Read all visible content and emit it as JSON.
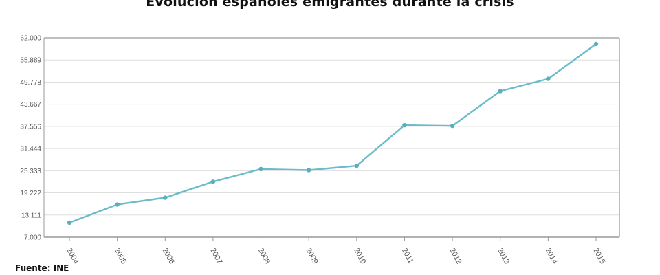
{
  "chart_data": {
    "type": "line",
    "title": "Evolución españoles emigrantes durante la crisis",
    "source": "Fuente: INE",
    "xlabel": "",
    "ylabel": "",
    "categories": [
      "2004",
      "2005",
      "2006",
      "2007",
      "2008",
      "2009",
      "2010",
      "2011",
      "2012",
      "2013",
      "2014",
      "2015"
    ],
    "series": [
      {
        "values": [
          11000,
          16000,
          17900,
          22300,
          25800,
          25500,
          26700,
          37900,
          37700,
          47300,
          50700,
          60300
        ]
      }
    ],
    "y_ticks": [
      7000,
      13111,
      19222,
      25333,
      31444,
      37556,
      43667,
      49778,
      55889,
      62000
    ],
    "y_tick_labels": [
      "7.000",
      "13.111",
      "19.222",
      "25.333",
      "31.444",
      "37.556",
      "43.667",
      "49.778",
      "55.889",
      "62.000"
    ],
    "ylim": [
      7000,
      62000
    ],
    "grid": true,
    "legend": "none",
    "colors": {
      "line": "#6bbccb",
      "marker": "#5aaebf",
      "grid": "#dedede",
      "axis": "#999999",
      "text": "#555555"
    }
  }
}
